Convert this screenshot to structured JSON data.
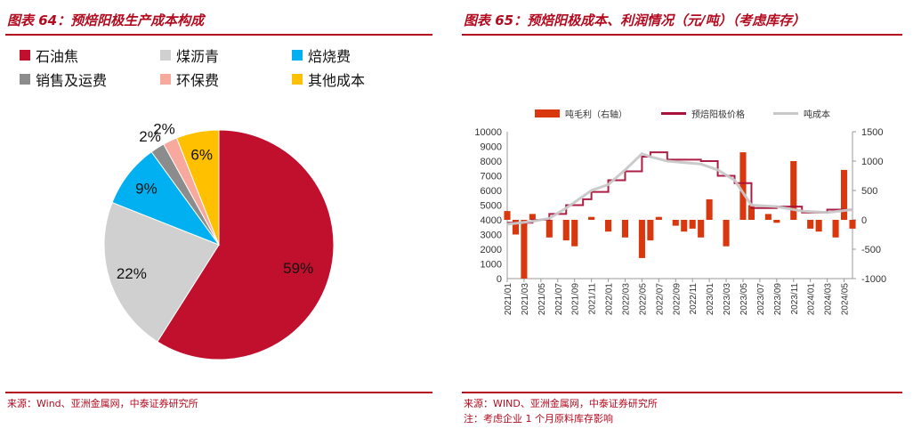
{
  "left": {
    "title": "图表 64：预焙阳极生产成本构成",
    "source": "来源：Wind、亚洲金属网，中泰证券研究所",
    "legend": [
      {
        "label": "石油焦",
        "color": "#c0102e"
      },
      {
        "label": "煤沥青",
        "color": "#d0d0d0"
      },
      {
        "label": "焙烧费",
        "color": "#00b0f0"
      },
      {
        "label": "销售及运费",
        "color": "#8c8c8c"
      },
      {
        "label": "环保费",
        "color": "#f7a99e"
      },
      {
        "label": "其他成本",
        "color": "#ffc000"
      }
    ]
  },
  "right": {
    "title": "图表 65：预焙阳极成本、利润情况（元/吨）（考虑库存）",
    "source": "来源：WIND、亚洲金属网，中泰证券研究所",
    "note": "注：考虑企业 1 个月原料库存影响",
    "legend": [
      {
        "label": "吨毛利（右轴）",
        "color": "#d9380f",
        "kind": "bar"
      },
      {
        "label": "预焙阳极价格",
        "color": "#a8123a",
        "kind": "line"
      },
      {
        "label": "吨成本",
        "color": "#c8c8c8",
        "kind": "line"
      }
    ]
  },
  "chart_data": [
    {
      "type": "pie",
      "labels": [
        "石油焦",
        "煤沥青",
        "焙烧费",
        "销售及运费",
        "环保费",
        "其他成本"
      ],
      "values": [
        59,
        22,
        9,
        2,
        2,
        6
      ],
      "data_labels": [
        "59%",
        "22%",
        "9%",
        "2%",
        "2%",
        "6%"
      ],
      "colors": [
        "#c0102e",
        "#d0d0d0",
        "#00b0f0",
        "#8c8c8c",
        "#f7a99e",
        "#ffc000"
      ],
      "start": "top, clockwise"
    },
    {
      "type": "line",
      "x_ticks": [
        "2021/01",
        "2021/03",
        "2021/05",
        "2021/07",
        "2021/09",
        "2021/11",
        "2022/01",
        "2022/03",
        "2022/05",
        "2022/07",
        "2022/09",
        "2022/11",
        "2023/01",
        "2023/03",
        "2023/05",
        "2023/07",
        "2023/09",
        "2023/11",
        "2024/01",
        "2024/03",
        "2024/05"
      ],
      "x_range": [
        "2021/01",
        "2024/06"
      ],
      "y_ticks": [
        "0",
        "1000",
        "2000",
        "3000",
        "4000",
        "5000",
        "6000",
        "7000",
        "8000",
        "9000",
        "10000"
      ],
      "y_range": [
        0,
        10000
      ],
      "y2_ticks": [
        "-1000",
        "-500",
        "0",
        "500",
        "1000",
        "1500"
      ],
      "y2_range": [
        -1000,
        1500
      ],
      "grid": false,
      "legend_position": "top",
      "series": [
        {
          "name": "预焙阳极价格",
          "color": "#a8123a",
          "axis": "left",
          "step": true,
          "points": [
            [
              "2021/01",
              3800
            ],
            [
              "2021/04",
              4000
            ],
            [
              "2021/06",
              4400
            ],
            [
              "2021/08",
              5000
            ],
            [
              "2021/10",
              5400
            ],
            [
              "2021/11",
              5900
            ],
            [
              "2022/01",
              6700
            ],
            [
              "2022/03",
              7300
            ],
            [
              "2022/05",
              8300
            ],
            [
              "2022/06",
              8600
            ],
            [
              "2022/08",
              8100
            ],
            [
              "2022/12",
              8000
            ],
            [
              "2023/02",
              7000
            ],
            [
              "2023/04",
              6500
            ],
            [
              "2023/06",
              4800
            ],
            [
              "2023/09",
              4900
            ],
            [
              "2023/12",
              4500
            ],
            [
              "2024/03",
              4700
            ],
            [
              "2024/06",
              4700
            ]
          ]
        },
        {
          "name": "吨成本",
          "color": "#c8c8c8",
          "axis": "left",
          "points": [
            [
              "2021/01",
              3700
            ],
            [
              "2021/04",
              3900
            ],
            [
              "2021/06",
              4100
            ],
            [
              "2021/08",
              4800
            ],
            [
              "2021/10",
              5600
            ],
            [
              "2021/11",
              6000
            ],
            [
              "2022/01",
              6400
            ],
            [
              "2022/03",
              7400
            ],
            [
              "2022/05",
              8500
            ],
            [
              "2022/06",
              8300
            ],
            [
              "2022/08",
              8000
            ],
            [
              "2022/12",
              7800
            ],
            [
              "2023/02",
              7400
            ],
            [
              "2023/04",
              6700
            ],
            [
              "2023/06",
              5000
            ],
            [
              "2023/09",
              4900
            ],
            [
              "2023/12",
              4600
            ],
            [
              "2024/03",
              4500
            ],
            [
              "2024/06",
              4700
            ]
          ]
        },
        {
          "name": "吨毛利（右轴）",
          "color": "#d9380f",
          "axis": "right",
          "type": "bar",
          "points": [
            [
              "2021/01",
              150
            ],
            [
              "2021/02",
              -250
            ],
            [
              "2021/03",
              -1000
            ],
            [
              "2021/04",
              100
            ],
            [
              "2021/06",
              -300
            ],
            [
              "2021/08",
              -350
            ],
            [
              "2021/09",
              -450
            ],
            [
              "2021/11",
              50
            ],
            [
              "2022/01",
              -200
            ],
            [
              "2022/03",
              -300
            ],
            [
              "2022/05",
              -650
            ],
            [
              "2022/06",
              -350
            ],
            [
              "2022/07",
              50
            ],
            [
              "2022/09",
              -100
            ],
            [
              "2022/10",
              -200
            ],
            [
              "2022/11",
              -150
            ],
            [
              "2022/12",
              -300
            ],
            [
              "2023/01",
              350
            ],
            [
              "2023/03",
              -450
            ],
            [
              "2023/05",
              1150
            ],
            [
              "2023/06",
              250
            ],
            [
              "2023/08",
              100
            ],
            [
              "2023/09",
              -50
            ],
            [
              "2023/11",
              1000
            ],
            [
              "2024/01",
              -150
            ],
            [
              "2024/02",
              -200
            ],
            [
              "2024/04",
              -300
            ],
            [
              "2024/05",
              850
            ],
            [
              "2024/06",
              -150
            ]
          ]
        }
      ]
    }
  ]
}
